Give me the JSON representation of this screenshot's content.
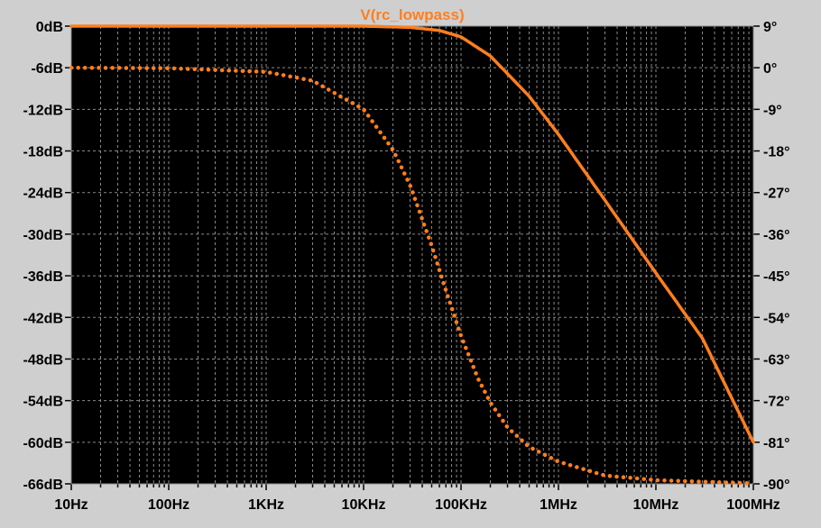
{
  "chart_data": {
    "type": "line",
    "title": "V(rc_lowpass)",
    "xscale": "log",
    "x_range_hz": [
      10,
      100000000
    ],
    "x_tick_labels": [
      "10Hz",
      "100Hz",
      "1KHz",
      "10KHz",
      "100KHz",
      "1MHz",
      "10MHz",
      "100MHz"
    ],
    "y_left": {
      "unit": "dB",
      "range": [
        -66,
        0
      ],
      "tick_labels": [
        "0dB",
        "-6dB",
        "-12dB",
        "-18dB",
        "-24dB",
        "-30dB",
        "-36dB",
        "-42dB",
        "-48dB",
        "-54dB",
        "-60dB",
        "-66dB"
      ]
    },
    "y_right": {
      "unit": "degrees",
      "range": [
        -90,
        9
      ],
      "tick_labels": [
        "9°",
        "0°",
        "-9°",
        "-18°",
        "-27°",
        "-36°",
        "-45°",
        "-54°",
        "-63°",
        "-72°",
        "-81°",
        "-90°"
      ]
    },
    "grid": true,
    "series": [
      {
        "name": "V(rc_lowpass)",
        "style": "solid",
        "axis": "left",
        "x": [
          10,
          100,
          1000,
          10000,
          30000,
          60000,
          100000,
          200000,
          500000,
          1000000,
          3000000,
          10000000,
          30000000,
          100000000
        ],
        "y": [
          0,
          0,
          0,
          0,
          -0.17,
          -0.62,
          -1.55,
          -4.3,
          -10.1,
          -15.6,
          -25.1,
          -35.6,
          -45.0,
          -60.0
        ]
      },
      {
        "axis": "right",
        "style": "dotted",
        "x": [
          10,
          100,
          1000,
          3000,
          10000,
          20000,
          30000,
          50000,
          70000,
          100000,
          150000,
          200000,
          300000,
          500000,
          1000000,
          3000000,
          10000000,
          100000000
        ],
        "y": [
          0,
          -0.1,
          -0.9,
          -2.8,
          -9.0,
          -17.7,
          -25.4,
          -38.5,
          -48.2,
          -58.0,
          -67.3,
          -72.4,
          -77.8,
          -82.0,
          -85.2,
          -88.2,
          -89.2,
          -89.9
        ]
      }
    ],
    "colors": {
      "background": "#000000",
      "frame": "#cfcfcf",
      "grid": "#8a8a8a",
      "trace": "#ff7f1f",
      "text": "#000000"
    }
  }
}
